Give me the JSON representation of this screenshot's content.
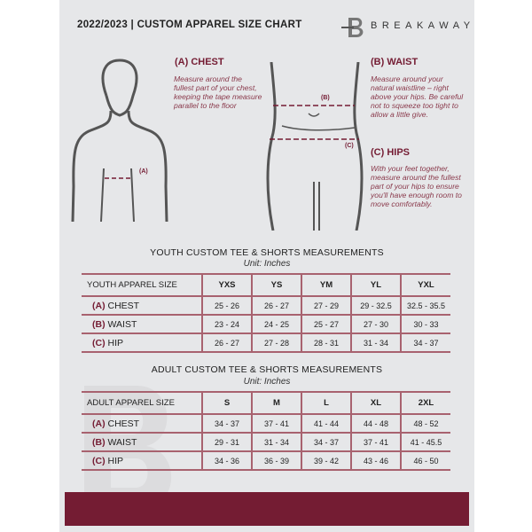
{
  "header": {
    "title": "2022/2023 | CUSTOM APPAREL SIZE CHART",
    "brand": "BREAKAWAY",
    "logo_letter": "B"
  },
  "measures": {
    "chest": {
      "heading": "(A) CHEST",
      "desc": "Measure around the fullest part of your chest, keeping the tape measure parallel to the floor",
      "marker": "(A)"
    },
    "waist": {
      "heading": "(B) WAIST",
      "desc": "Measure around your natural waistline – right above your hips. Be careful not to squeeze too tight to allow a little give.",
      "marker": "(B)"
    },
    "hips": {
      "heading": "(C) HIPS",
      "desc": "With your feet together, measure around the fullest part of your hips to ensure you'll have enough room to move comfortably.",
      "marker": "(C)"
    }
  },
  "youth": {
    "title": "YOUTH CUSTOM TEE & SHORTS MEASUREMENTS",
    "unit": "Unit: Inches",
    "header": [
      "YOUTH APPAREL SIZE",
      "YXS",
      "YS",
      "YM",
      "YL",
      "YXL"
    ],
    "rows": [
      {
        "letter": "(A)",
        "label": "CHEST",
        "values": [
          "25 - 26",
          "26 - 27",
          "27 - 29",
          "29 - 32.5",
          "32.5 - 35.5"
        ]
      },
      {
        "letter": "(B)",
        "label": "WAIST",
        "values": [
          "23 - 24",
          "24 - 25",
          "25 - 27",
          "27 - 30",
          "30 - 33"
        ]
      },
      {
        "letter": "(C)",
        "label": "HIP",
        "values": [
          "26 - 27",
          "27 - 28",
          "28 - 31",
          "31 - 34",
          "34 - 37"
        ]
      }
    ]
  },
  "adult": {
    "title": "ADULT CUSTOM TEE & SHORTS MEASUREMENTS",
    "unit": "Unit: Inches",
    "header": [
      "ADULT APPAREL SIZE",
      "S",
      "M",
      "L",
      "XL",
      "2XL"
    ],
    "rows": [
      {
        "letter": "(A)",
        "label": "CHEST",
        "values": [
          "34 - 37",
          "37 - 41",
          "41 - 44",
          "44 - 48",
          "48 - 52"
        ]
      },
      {
        "letter": "(B)",
        "label": "WAIST",
        "values": [
          "29 - 31",
          "31 - 34",
          "34 - 37",
          "37 - 41",
          "41 - 45.5"
        ]
      },
      {
        "letter": "(C)",
        "label": "HIP",
        "values": [
          "34 - 36",
          "36 - 39",
          "39 - 42",
          "43 - 46",
          "46 - 50"
        ]
      }
    ]
  },
  "colors": {
    "accent": "#741c33",
    "panel": "#e6e7e9"
  }
}
